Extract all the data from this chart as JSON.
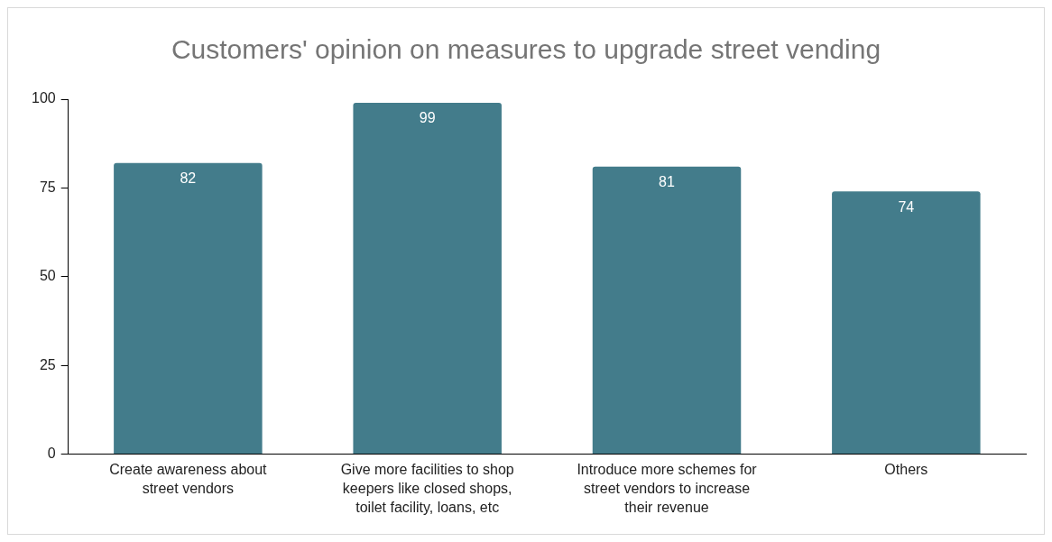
{
  "chart_data": {
    "type": "bar",
    "title": "Customers' opinion on measures to upgrade street vending",
    "categories": [
      "Create awareness about street vendors",
      "Give more facilities to shop keepers like closed shops, toilet facility, loans, etc",
      "Introduce more schemes for street vendors to increase their revenue",
      "Others"
    ],
    "values": [
      82,
      99,
      81,
      74
    ],
    "color": "#437c8b",
    "ylim": [
      0,
      100
    ],
    "yticks": [
      0,
      25,
      50,
      75,
      100
    ],
    "grid": false,
    "data_labels": true,
    "legend": false
  }
}
